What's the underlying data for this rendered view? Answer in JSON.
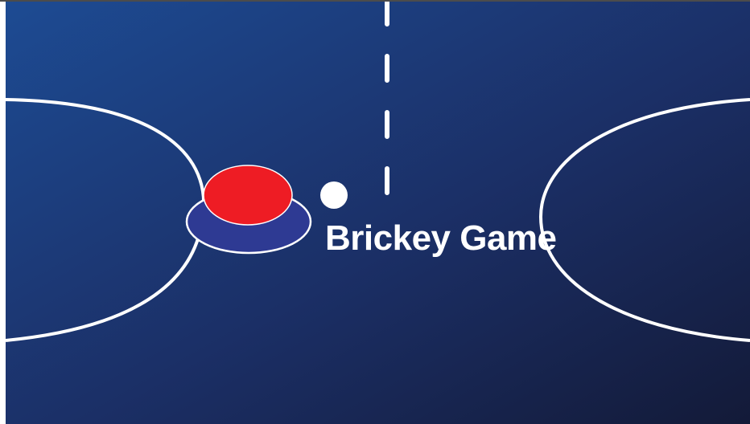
{
  "game": {
    "title": "Brickey Game"
  },
  "colors": {
    "field_gradient_start": "#1d4b93",
    "field_gradient_end": "#141c3a",
    "line": "#ffffff",
    "mallet_cap": "#ee1c24",
    "mallet_base": "#2e3a93",
    "puck": "#ffffff"
  },
  "icons": {
    "mallet": "air-hockey-mallet-icon",
    "puck": "puck-icon"
  }
}
